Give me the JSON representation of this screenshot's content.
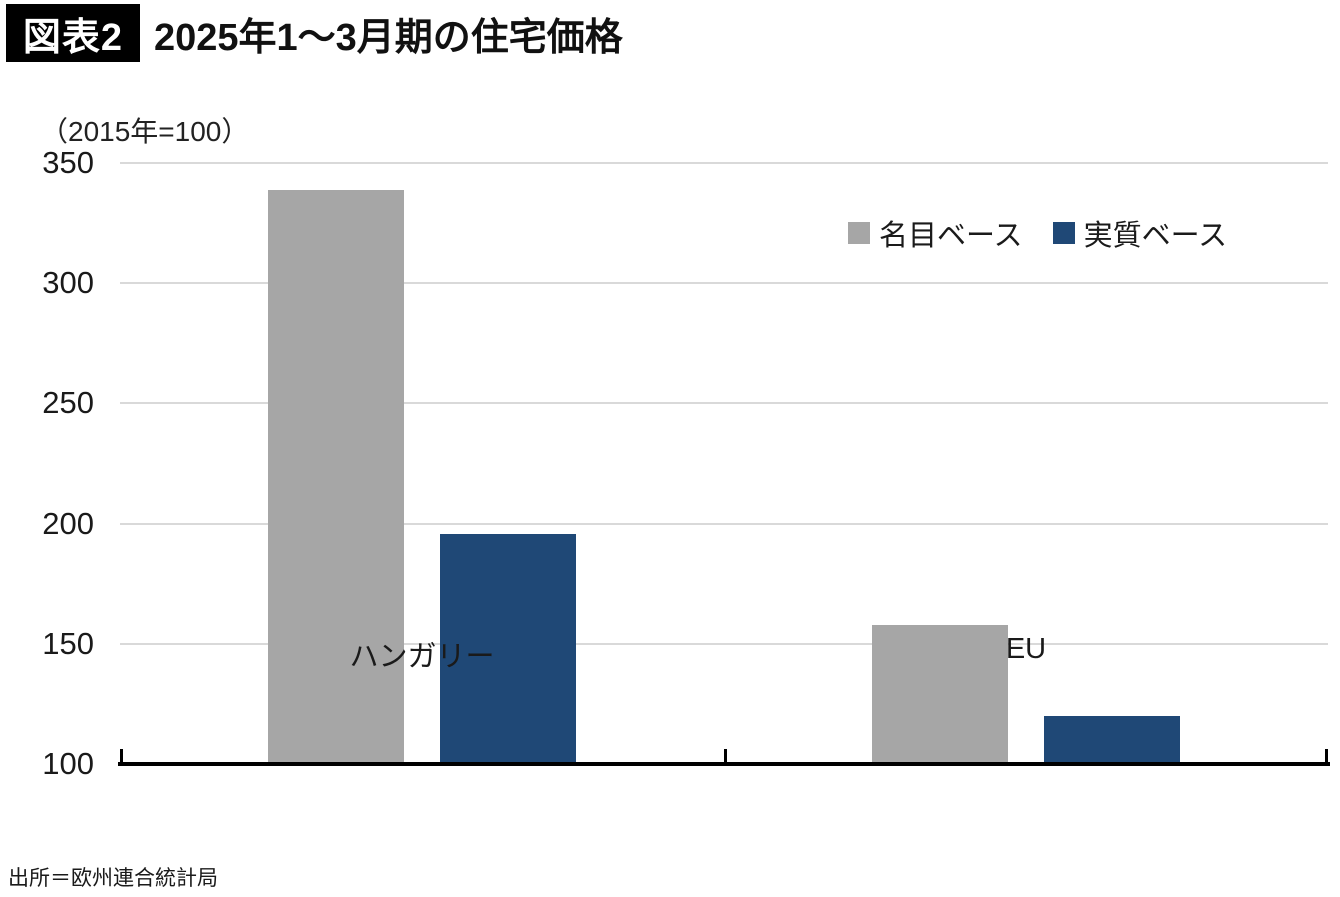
{
  "header": {
    "badge": "図表2",
    "title": "2025年1〜3月期の住宅価格"
  },
  "source_note": "出所＝欧州連合統計局",
  "colors": {
    "nominal_series": "#A6A6A6",
    "real_series": "#1F4876",
    "gridline": "#D9D9D9",
    "axis": "#000000",
    "badge_bg": "#000000",
    "badge_text": "#FFFFFF"
  },
  "chart_data": {
    "type": "bar",
    "title": "2025年1〜3月期の住宅価格",
    "unit_label": "（2015年=100）",
    "categories": [
      "ハンガリー",
      "EU"
    ],
    "series": [
      {
        "name": "名目ベース",
        "color": "#A6A6A6",
        "values": [
          338,
          157
        ]
      },
      {
        "name": "実質ベース",
        "color": "#1F4876",
        "values": [
          195,
          119
        ]
      }
    ],
    "ylim": [
      100,
      350
    ],
    "yticks": [
      350,
      300,
      250,
      200,
      150,
      100
    ],
    "grid": "horizontal",
    "legend_position": "top-right"
  }
}
